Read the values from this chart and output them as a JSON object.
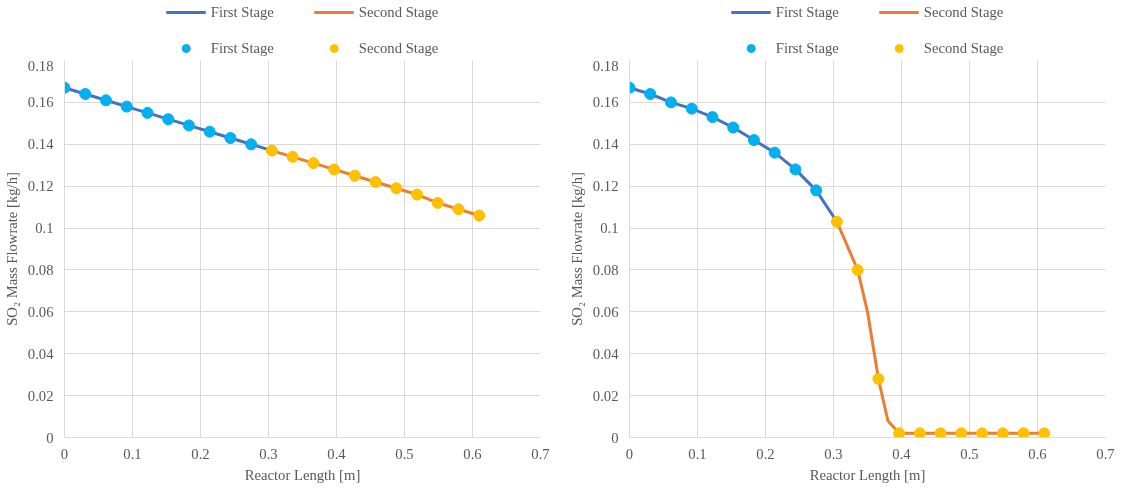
{
  "chart_data": [
    {
      "type": "line",
      "xlabel": "Reactor Length [m]",
      "ylabel": "SO₂ Mass Flowrate [kg/h]",
      "xlim": [
        0,
        0.7
      ],
      "ylim": [
        0,
        0.18
      ],
      "xticks": [
        0,
        0.1,
        0.2,
        0.3,
        0.4,
        0.5,
        0.6,
        0.7
      ],
      "yticks": [
        0,
        0.02,
        0.04,
        0.06,
        0.08,
        0.1,
        0.12,
        0.14,
        0.16,
        0.18
      ],
      "grid": true,
      "legend": "top",
      "line_style": "solid",
      "series": [
        {
          "name": "First Stage",
          "type": "line",
          "color": "#4472c4",
          "x": [
            0,
            0.0305,
            0.061,
            0.0915,
            0.122,
            0.1525,
            0.183,
            0.2135,
            0.244,
            0.2745,
            0.305
          ],
          "values": [
            0.167,
            0.164,
            0.161,
            0.158,
            0.155,
            0.152,
            0.149,
            0.146,
            0.143,
            0.14,
            0.137
          ]
        },
        {
          "name": "Second Stage",
          "type": "line",
          "color": "#ed7d31",
          "x": [
            0.305,
            0.3355,
            0.366,
            0.3965,
            0.427,
            0.4575,
            0.488,
            0.5185,
            0.549,
            0.5795,
            0.61
          ],
          "values": [
            0.137,
            0.134,
            0.131,
            0.128,
            0.125,
            0.122,
            0.119,
            0.116,
            0.112,
            0.109,
            0.106
          ]
        },
        {
          "name": "First Stage",
          "type": "scatter",
          "marker": "circle",
          "color": "#00b0f0",
          "x": [
            0,
            0.0305,
            0.061,
            0.0915,
            0.122,
            0.1525,
            0.183,
            0.2135,
            0.244,
            0.2745
          ],
          "values": [
            0.167,
            0.164,
            0.161,
            0.158,
            0.155,
            0.152,
            0.149,
            0.146,
            0.143,
            0.14
          ]
        },
        {
          "name": "Second Stage",
          "type": "scatter",
          "marker": "circle",
          "color": "#ffc000",
          "x": [
            0.305,
            0.3355,
            0.366,
            0.3965,
            0.427,
            0.4575,
            0.488,
            0.5185,
            0.549,
            0.5795,
            0.61
          ],
          "values": [
            0.137,
            0.134,
            0.131,
            0.128,
            0.125,
            0.122,
            0.119,
            0.116,
            0.112,
            0.109,
            0.106
          ]
        }
      ]
    },
    {
      "type": "line",
      "xlabel": "Reactor Length [m]",
      "ylabel": "SO₂ Mass Flowrate [kg/h]",
      "xlim": [
        0,
        0.7
      ],
      "ylim": [
        0,
        0.18
      ],
      "xticks": [
        0,
        0.1,
        0.2,
        0.3,
        0.4,
        0.5,
        0.6,
        0.7
      ],
      "yticks": [
        0,
        0.02,
        0.04,
        0.06,
        0.08,
        0.1,
        0.12,
        0.14,
        0.16,
        0.18
      ],
      "grid": true,
      "legend": "top",
      "line_style": "solid",
      "series": [
        {
          "name": "First Stage",
          "type": "line",
          "color": "#4472c4",
          "x": [
            0,
            0.0305,
            0.061,
            0.0915,
            0.122,
            0.1525,
            0.183,
            0.2135,
            0.244,
            0.2745,
            0.305
          ],
          "values": [
            0.167,
            0.164,
            0.16,
            0.157,
            0.153,
            0.148,
            0.142,
            0.136,
            0.128,
            0.118,
            0.103
          ]
        },
        {
          "name": "Second Stage",
          "type": "line",
          "color": "#ed7d31",
          "x": [
            0.305,
            0.3355,
            0.35,
            0.366,
            0.38,
            0.3965,
            0.427,
            0.4575,
            0.488,
            0.5185,
            0.549,
            0.5795,
            0.61
          ],
          "values": [
            0.103,
            0.08,
            0.06,
            0.028,
            0.008,
            0.002,
            0.002,
            0.002,
            0.002,
            0.002,
            0.002,
            0.002,
            0.002
          ]
        },
        {
          "name": "First Stage",
          "type": "scatter",
          "marker": "circle",
          "color": "#00b0f0",
          "x": [
            0,
            0.0305,
            0.061,
            0.0915,
            0.122,
            0.1525,
            0.183,
            0.2135,
            0.244,
            0.2745
          ],
          "values": [
            0.167,
            0.164,
            0.16,
            0.157,
            0.153,
            0.148,
            0.142,
            0.136,
            0.128,
            0.118
          ]
        },
        {
          "name": "Second Stage",
          "type": "scatter",
          "marker": "circle",
          "color": "#ffc000",
          "x": [
            0.305,
            0.3355,
            0.366,
            0.3965,
            0.427,
            0.4575,
            0.488,
            0.5185,
            0.549,
            0.5795,
            0.61
          ],
          "values": [
            0.103,
            0.08,
            0.028,
            0.002,
            0.002,
            0.002,
            0.002,
            0.002,
            0.002,
            0.002,
            0.002
          ]
        }
      ]
    }
  ]
}
